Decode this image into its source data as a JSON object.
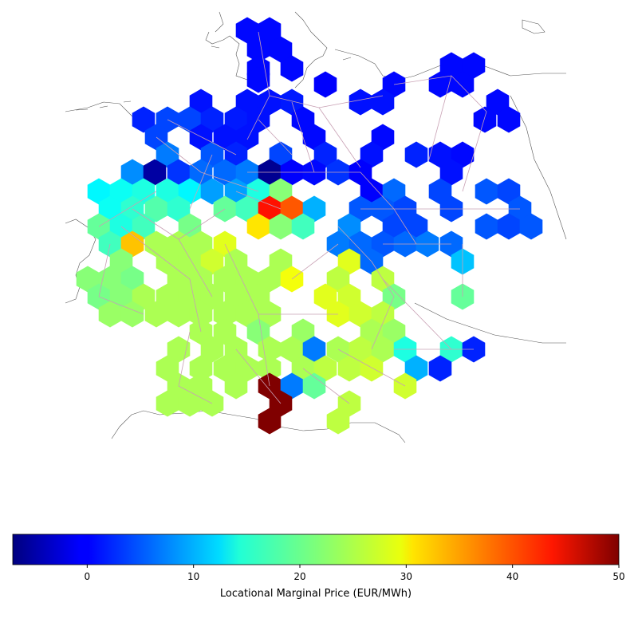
{
  "map": {
    "region": "Germany",
    "cells": [
      [
        310,
        38,
        0.5
      ],
      [
        338,
        38,
        0.5
      ],
      [
        324,
        62,
        0.5
      ],
      [
        324,
        86,
        0.5
      ],
      [
        352,
        62,
        0.5
      ],
      [
        366,
        86,
        0.5
      ],
      [
        324,
        100,
        0.5
      ],
      [
        408,
        106,
        0
      ],
      [
        494,
        106,
        0.5
      ],
      [
        566,
        82,
        0.5
      ],
      [
        594,
        82,
        0.5
      ],
      [
        552,
        106,
        0.5
      ],
      [
        580,
        106,
        0.5
      ],
      [
        252,
        128,
        1
      ],
      [
        310,
        128,
        1
      ],
      [
        338,
        128,
        1
      ],
      [
        366,
        128,
        1.5
      ],
      [
        452,
        128,
        1
      ],
      [
        480,
        128,
        1
      ],
      [
        624,
        128,
        0.5
      ],
      [
        180,
        150,
        2
      ],
      [
        210,
        150,
        4
      ],
      [
        238,
        150,
        4
      ],
      [
        266,
        150,
        2
      ],
      [
        296,
        150,
        1.5
      ],
      [
        324,
        150,
        1
      ],
      [
        380,
        150,
        0.5
      ],
      [
        608,
        150,
        0.5
      ],
      [
        638,
        150,
        0.5
      ],
      [
        196,
        172,
        4
      ],
      [
        252,
        172,
        1
      ],
      [
        282,
        172,
        1
      ],
      [
        310,
        172,
        1
      ],
      [
        394,
        172,
        0.5
      ],
      [
        480,
        172,
        0.5
      ],
      [
        210,
        194,
        7
      ],
      [
        266,
        194,
        5
      ],
      [
        296,
        194,
        2
      ],
      [
        352,
        194,
        4
      ],
      [
        408,
        194,
        2
      ],
      [
        466,
        194,
        1
      ],
      [
        522,
        194,
        2
      ],
      [
        552,
        194,
        1
      ],
      [
        580,
        194,
        0.5
      ],
      [
        166,
        216,
        8
      ],
      [
        194,
        216,
        -5
      ],
      [
        224,
        216,
        3
      ],
      [
        252,
        216,
        6
      ],
      [
        282,
        216,
        6
      ],
      [
        310,
        216,
        7
      ],
      [
        338,
        216,
        -6
      ],
      [
        366,
        216,
        0
      ],
      [
        394,
        216,
        0.5
      ],
      [
        424,
        216,
        3
      ],
      [
        452,
        216,
        0
      ],
      [
        566,
        216,
        1
      ],
      [
        124,
        240,
        14
      ],
      [
        152,
        240,
        15
      ],
      [
        180,
        240,
        16
      ],
      [
        210,
        240,
        16
      ],
      [
        238,
        240,
        14
      ],
      [
        266,
        240,
        9
      ],
      [
        296,
        240,
        9
      ],
      [
        324,
        240,
        16
      ],
      [
        352,
        240,
        22
      ],
      [
        466,
        240,
        0
      ],
      [
        494,
        240,
        6
      ],
      [
        552,
        240,
        4
      ],
      [
        610,
        240,
        5
      ],
      [
        638,
        240,
        4
      ],
      [
        138,
        262,
        15
      ],
      [
        166,
        262,
        17
      ],
      [
        196,
        262,
        19
      ],
      [
        224,
        262,
        17
      ],
      [
        282,
        262,
        20
      ],
      [
        310,
        262,
        18
      ],
      [
        338,
        262,
        42
      ],
      [
        366,
        262,
        38
      ],
      [
        394,
        262,
        10
      ],
      [
        452,
        262,
        5
      ],
      [
        480,
        262,
        5
      ],
      [
        508,
        262,
        4
      ],
      [
        566,
        262,
        4
      ],
      [
        652,
        262,
        5
      ],
      [
        124,
        284,
        20
      ],
      [
        152,
        284,
        16
      ],
      [
        180,
        284,
        18
      ],
      [
        238,
        284,
        21
      ],
      [
        324,
        284,
        30
      ],
      [
        352,
        284,
        22
      ],
      [
        380,
        284,
        18
      ],
      [
        438,
        284,
        8
      ],
      [
        494,
        284,
        4
      ],
      [
        522,
        284,
        4
      ],
      [
        610,
        284,
        5
      ],
      [
        638,
        284,
        4
      ],
      [
        666,
        284,
        5
      ],
      [
        138,
        306,
        18
      ],
      [
        166,
        306,
        32
      ],
      [
        196,
        306,
        24
      ],
      [
        224,
        306,
        24
      ],
      [
        252,
        306,
        24
      ],
      [
        282,
        306,
        27
      ],
      [
        424,
        306,
        7
      ],
      [
        452,
        306,
        6
      ],
      [
        480,
        306,
        5
      ],
      [
        508,
        306,
        6
      ],
      [
        536,
        306,
        7
      ],
      [
        566,
        306,
        6
      ],
      [
        152,
        328,
        22
      ],
      [
        210,
        328,
        24
      ],
      [
        238,
        328,
        24
      ],
      [
        266,
        328,
        26
      ],
      [
        296,
        328,
        24
      ],
      [
        352,
        328,
        24
      ],
      [
        438,
        328,
        27
      ],
      [
        466,
        328,
        6
      ],
      [
        580,
        328,
        11
      ],
      [
        110,
        350,
        22
      ],
      [
        138,
        350,
        22
      ],
      [
        166,
        350,
        21
      ],
      [
        224,
        350,
        24
      ],
      [
        252,
        350,
        24
      ],
      [
        282,
        350,
        24
      ],
      [
        310,
        350,
        24
      ],
      [
        338,
        350,
        24
      ],
      [
        366,
        350,
        28
      ],
      [
        424,
        350,
        25
      ],
      [
        480,
        350,
        25
      ],
      [
        124,
        372,
        21
      ],
      [
        152,
        372,
        22
      ],
      [
        180,
        372,
        24
      ],
      [
        210,
        372,
        24
      ],
      [
        238,
        372,
        24
      ],
      [
        266,
        372,
        24
      ],
      [
        296,
        372,
        24
      ],
      [
        324,
        372,
        24
      ],
      [
        408,
        372,
        27
      ],
      [
        438,
        372,
        26
      ],
      [
        494,
        372,
        21
      ],
      [
        580,
        372,
        20
      ],
      [
        138,
        394,
        23
      ],
      [
        166,
        394,
        23
      ],
      [
        196,
        394,
        24
      ],
      [
        224,
        394,
        24
      ],
      [
        252,
        394,
        24
      ],
      [
        282,
        394,
        24
      ],
      [
        310,
        394,
        24
      ],
      [
        338,
        394,
        24
      ],
      [
        424,
        394,
        27
      ],
      [
        452,
        394,
        26
      ],
      [
        480,
        394,
        25
      ],
      [
        252,
        416,
        24
      ],
      [
        282,
        416,
        24
      ],
      [
        324,
        416,
        22
      ],
      [
        380,
        416,
        23
      ],
      [
        466,
        416,
        24
      ],
      [
        494,
        416,
        23
      ],
      [
        224,
        438,
        24
      ],
      [
        266,
        438,
        24
      ],
      [
        296,
        438,
        24
      ],
      [
        338,
        438,
        24
      ],
      [
        366,
        438,
        24
      ],
      [
        394,
        438,
        7
      ],
      [
        424,
        438,
        24
      ],
      [
        452,
        438,
        25
      ],
      [
        480,
        438,
        24
      ],
      [
        508,
        438,
        16
      ],
      [
        566,
        438,
        17
      ],
      [
        594,
        438,
        2
      ],
      [
        210,
        462,
        24
      ],
      [
        252,
        462,
        24
      ],
      [
        282,
        462,
        24
      ],
      [
        310,
        462,
        24
      ],
      [
        338,
        462,
        24
      ],
      [
        380,
        462,
        24
      ],
      [
        408,
        462,
        25
      ],
      [
        438,
        462,
        25
      ],
      [
        466,
        462,
        26
      ],
      [
        522,
        462,
        10
      ],
      [
        552,
        462,
        2
      ],
      [
        224,
        484,
        24
      ],
      [
        252,
        484,
        24
      ],
      [
        296,
        484,
        24
      ],
      [
        338,
        484,
        50
      ],
      [
        366,
        484,
        7
      ],
      [
        394,
        484,
        20
      ],
      [
        508,
        484,
        26
      ],
      [
        210,
        506,
        24
      ],
      [
        238,
        506,
        24
      ],
      [
        266,
        506,
        24
      ],
      [
        352,
        506,
        50
      ],
      [
        438,
        506,
        25
      ],
      [
        338,
        528,
        50
      ],
      [
        424,
        528,
        25
      ]
    ],
    "lines": [
      [
        [
          324,
          40
        ],
        [
          338,
          120
        ],
        [
          310,
          175
        ]
      ],
      [
        [
          338,
          120
        ],
        [
          400,
          135
        ],
        [
          480,
          120
        ]
      ],
      [
        [
          400,
          135
        ],
        [
          452,
          210
        ]
      ],
      [
        [
          494,
          106
        ],
        [
          566,
          95
        ],
        [
          610,
          140
        ]
      ],
      [
        [
          566,
          95
        ],
        [
          538,
          200
        ]
      ],
      [
        [
          610,
          140
        ],
        [
          580,
          240
        ]
      ],
      [
        [
          196,
          172
        ],
        [
          252,
          216
        ],
        [
          324,
          240
        ]
      ],
      [
        [
          210,
          150
        ],
        [
          296,
          194
        ]
      ],
      [
        [
          366,
          128
        ],
        [
          394,
          216
        ]
      ],
      [
        [
          166,
          262
        ],
        [
          224,
          300
        ],
        [
          282,
          262
        ]
      ],
      [
        [
          224,
          300
        ],
        [
          266,
          372
        ]
      ],
      [
        [
          152,
          284
        ],
        [
          238,
          350
        ],
        [
          252,
          416
        ]
      ],
      [
        [
          282,
          306
        ],
        [
          324,
          394
        ],
        [
          338,
          484
        ]
      ],
      [
        [
          324,
          394
        ],
        [
          424,
          394
        ]
      ],
      [
        [
          366,
          350
        ],
        [
          424,
          306
        ]
      ],
      [
        [
          452,
          262
        ],
        [
          538,
          262
        ],
        [
          652,
          262
        ]
      ],
      [
        [
          480,
          306
        ],
        [
          566,
          306
        ]
      ],
      [
        [
          424,
          284
        ],
        [
          466,
          328
        ]
      ],
      [
        [
          238,
          416
        ],
        [
          224,
          484
        ],
        [
          266,
          506
        ]
      ],
      [
        [
          296,
          438
        ],
        [
          352,
          506
        ]
      ],
      [
        [
          380,
          462
        ],
        [
          438,
          506
        ]
      ],
      [
        [
          138,
          306
        ],
        [
          124,
          372
        ],
        [
          180,
          394
        ]
      ],
      [
        [
          196,
          240
        ],
        [
          124,
          284
        ]
      ],
      [
        [
          296,
          240
        ],
        [
          352,
          262
        ]
      ],
      [
        [
          452,
          216
        ],
        [
          494,
          262
        ],
        [
          522,
          306
        ]
      ],
      [
        [
          466,
          328
        ],
        [
          494,
          372
        ],
        [
          466,
          438
        ]
      ],
      [
        [
          580,
          306
        ],
        [
          580,
          372
        ]
      ],
      [
        [
          310,
          216
        ],
        [
          380,
          216
        ],
        [
          452,
          216
        ]
      ],
      [
        [
          266,
          194
        ],
        [
          238,
          262
        ]
      ],
      [
        [
          324,
          150
        ],
        [
          366,
          194
        ]
      ],
      [
        [
          494,
          438
        ],
        [
          594,
          438
        ]
      ],
      [
        [
          480,
          350
        ],
        [
          566,
          438
        ]
      ],
      [
        [
          424,
          438
        ],
        [
          508,
          484
        ]
      ]
    ]
  },
  "colorbar": {
    "label": "Locational Marginal Price (EUR/MWh)",
    "vmin": -7,
    "vmax": 50,
    "ticks": [
      0,
      10,
      20,
      30,
      40,
      50
    ],
    "colormap": "jet",
    "line_color": "#c8a0b4",
    "border_color": "#555555"
  }
}
